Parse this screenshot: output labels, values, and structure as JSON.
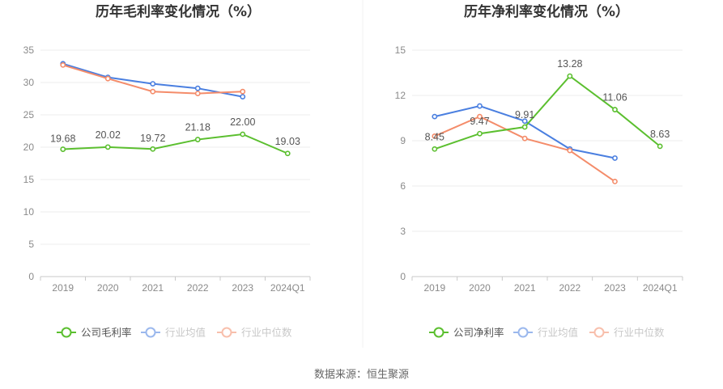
{
  "source": "数据来源：恒生聚源",
  "colors": {
    "company": "#5bbf2f",
    "industry_avg": "#4a7fe0",
    "industry_median": "#f48c6a",
    "grid": "#ececec",
    "axis": "#c8c8c8",
    "legend_text_active": "#555555",
    "legend_text_faded": "#9a9a9a"
  },
  "chart_data": [
    {
      "type": "line",
      "title": "历年毛利率变化情况（%）",
      "categories": [
        "2019",
        "2020",
        "2021",
        "2022",
        "2023",
        "2024Q1"
      ],
      "ylim": [
        0,
        35
      ],
      "yticks": [
        0,
        5,
        10,
        15,
        20,
        25,
        30,
        35
      ],
      "grid": true,
      "legend_position": "bottom",
      "series": [
        {
          "name": "公司毛利率",
          "key": "company",
          "values": [
            19.68,
            20.02,
            19.72,
            21.18,
            22.0,
            19.03
          ],
          "labels": [
            "19.68",
            "20.02",
            "19.72",
            "21.18",
            "22.00",
            "19.03"
          ]
        },
        {
          "name": "行业均值",
          "key": "industry_avg",
          "values": [
            32.9,
            30.8,
            29.8,
            29.1,
            27.8,
            null
          ]
        },
        {
          "name": "行业中位数",
          "key": "industry_median",
          "values": [
            32.7,
            30.6,
            28.6,
            28.3,
            28.6,
            null
          ]
        }
      ]
    },
    {
      "type": "line",
      "title": "历年净利率变化情况（%）",
      "categories": [
        "2019",
        "2020",
        "2021",
        "2022",
        "2023",
        "2024Q1"
      ],
      "ylim": [
        0,
        15
      ],
      "yticks": [
        0,
        3,
        6,
        9,
        12,
        15
      ],
      "grid": true,
      "legend_position": "bottom",
      "series": [
        {
          "name": "公司净利率",
          "key": "company",
          "values": [
            8.45,
            9.47,
            9.91,
            13.28,
            11.06,
            8.63
          ],
          "labels": [
            "8.45",
            "9.47",
            "9.91",
            "13.28",
            "11.06",
            "8.63"
          ]
        },
        {
          "name": "行业均值",
          "key": "industry_avg",
          "values": [
            10.6,
            11.3,
            10.3,
            8.45,
            7.85,
            null
          ]
        },
        {
          "name": "行业中位数",
          "key": "industry_median",
          "values": [
            9.3,
            10.6,
            9.15,
            8.35,
            6.3,
            null
          ]
        }
      ]
    }
  ]
}
